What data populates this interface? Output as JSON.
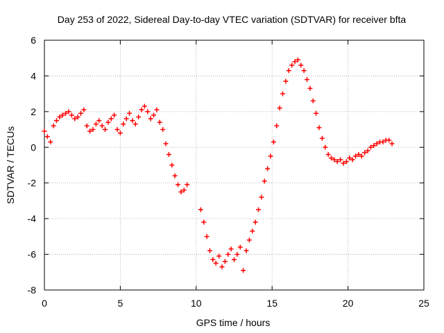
{
  "chart_data": {
    "type": "scatter",
    "title": "Day 253 of 2022, Sidereal Day-to-day VTEC variation (SDTVAR) for receiver bfta",
    "xlabel": "GPS time / hours",
    "ylabel": "SDTVAR / TECUs",
    "xlim": [
      0,
      25
    ],
    "ylim": [
      -8,
      6
    ],
    "xticks": [
      "0",
      "5",
      "10",
      "15",
      "20",
      "25"
    ],
    "yticks": [
      "-8",
      "-6",
      "-4",
      "-2",
      "0",
      "2",
      "4",
      "6"
    ],
    "grid": true,
    "marker": "+",
    "color": "#ff0000",
    "series": [
      {
        "name": "SDTVAR",
        "x": [
          0.0,
          0.2,
          0.4,
          0.6,
          0.8,
          1.0,
          1.2,
          1.4,
          1.6,
          1.8,
          2.0,
          2.2,
          2.4,
          2.6,
          2.8,
          3.0,
          3.2,
          3.4,
          3.6,
          3.8,
          4.0,
          4.2,
          4.4,
          4.6,
          4.8,
          5.0,
          5.2,
          5.4,
          5.6,
          5.8,
          6.0,
          6.2,
          6.4,
          6.6,
          6.8,
          7.0,
          7.2,
          7.4,
          7.6,
          7.8,
          8.0,
          8.2,
          8.4,
          8.6,
          8.8,
          9.0,
          9.2,
          9.4,
          10.3,
          10.5,
          10.7,
          10.9,
          11.1,
          11.3,
          11.5,
          11.7,
          11.9,
          12.1,
          12.3,
          12.5,
          12.7,
          12.9,
          13.1,
          13.3,
          13.5,
          13.7,
          13.9,
          14.1,
          14.3,
          14.5,
          14.7,
          14.9,
          15.1,
          15.3,
          15.5,
          15.7,
          15.9,
          16.1,
          16.3,
          16.5,
          16.7,
          16.9,
          17.1,
          17.3,
          17.5,
          17.7,
          17.9,
          18.1,
          18.3,
          18.5,
          18.7,
          18.9,
          19.1,
          19.3,
          19.5,
          19.7,
          19.9,
          20.1,
          20.3,
          20.5,
          20.7,
          20.9,
          21.1,
          21.3,
          21.5,
          21.7,
          21.9,
          22.1,
          22.3,
          22.5,
          22.7,
          22.9
        ],
        "y": [
          0.9,
          0.6,
          0.3,
          1.2,
          1.5,
          1.7,
          1.8,
          1.9,
          2.0,
          1.8,
          1.6,
          1.7,
          1.9,
          2.1,
          1.2,
          0.9,
          1.0,
          1.3,
          1.5,
          1.2,
          1.0,
          1.4,
          1.6,
          1.8,
          1.0,
          0.8,
          1.3,
          1.6,
          1.9,
          1.5,
          1.3,
          1.7,
          2.1,
          2.3,
          2.0,
          1.6,
          1.8,
          2.1,
          1.4,
          1.0,
          0.2,
          -0.4,
          -1.0,
          -1.6,
          -2.1,
          -2.5,
          -2.4,
          -2.1,
          -3.5,
          -4.2,
          -5.0,
          -5.8,
          -6.3,
          -6.5,
          -6.1,
          -6.7,
          -6.4,
          -6.0,
          -5.7,
          -6.3,
          -6.0,
          -5.6,
          -6.9,
          -5.8,
          -5.2,
          -4.7,
          -4.2,
          -3.5,
          -2.8,
          -1.9,
          -1.2,
          -0.5,
          0.3,
          1.2,
          2.2,
          3.0,
          3.7,
          4.3,
          4.6,
          4.8,
          4.9,
          4.6,
          4.3,
          3.8,
          3.3,
          2.6,
          1.9,
          1.1,
          0.5,
          0.0,
          -0.4,
          -0.6,
          -0.7,
          -0.8,
          -0.7,
          -0.9,
          -0.8,
          -0.6,
          -0.7,
          -0.5,
          -0.4,
          -0.5,
          -0.3,
          -0.2,
          0.0,
          0.1,
          0.2,
          0.3,
          0.3,
          0.4,
          0.4,
          0.2
        ]
      }
    ]
  }
}
